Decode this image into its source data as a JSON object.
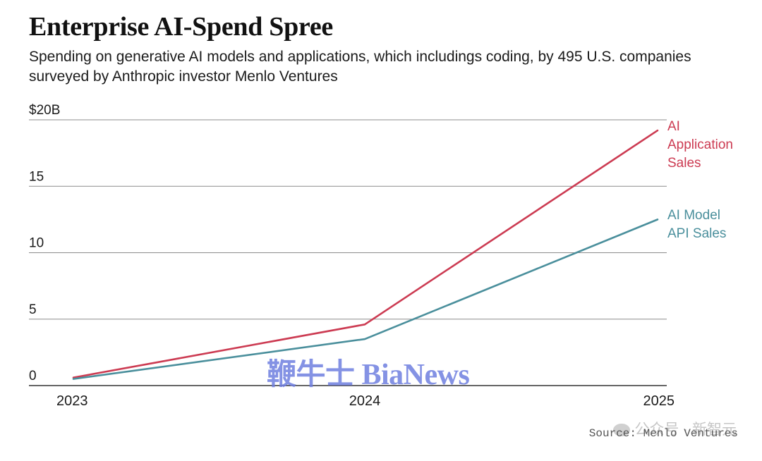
{
  "header": {
    "title": "Enterprise AI-Spend Spree",
    "subtitle": "Spending on generative AI models and applications, which includings coding, by 495 U.S. companies surveyed by Anthropic investor Menlo Ventures"
  },
  "chart_data": {
    "type": "line",
    "x": [
      "2023",
      "2024",
      "2025"
    ],
    "ylim": [
      0,
      20
    ],
    "yticks": [
      0,
      5,
      10,
      15,
      20
    ],
    "ytick_labels": [
      "0",
      "5",
      "10",
      "15",
      "$20B"
    ],
    "grid": true,
    "legend": "inline-right",
    "series": [
      {
        "name": "AI Application Sales",
        "label_lines": [
          "AI",
          "Application",
          "Sales"
        ],
        "color": "#cc3b52",
        "values": [
          0.6,
          4.6,
          19.2
        ]
      },
      {
        "name": "AI Model API Sales",
        "label_lines": [
          "AI Model",
          "API Sales"
        ],
        "color": "#4a8f9c",
        "values": [
          0.5,
          3.5,
          12.5
        ]
      }
    ]
  },
  "footer": {
    "source": "Source: Menlo Ventures",
    "wechat_text": "公众号 · 新智元"
  },
  "watermark": {
    "text": "鞭牛士 BiaNews"
  }
}
